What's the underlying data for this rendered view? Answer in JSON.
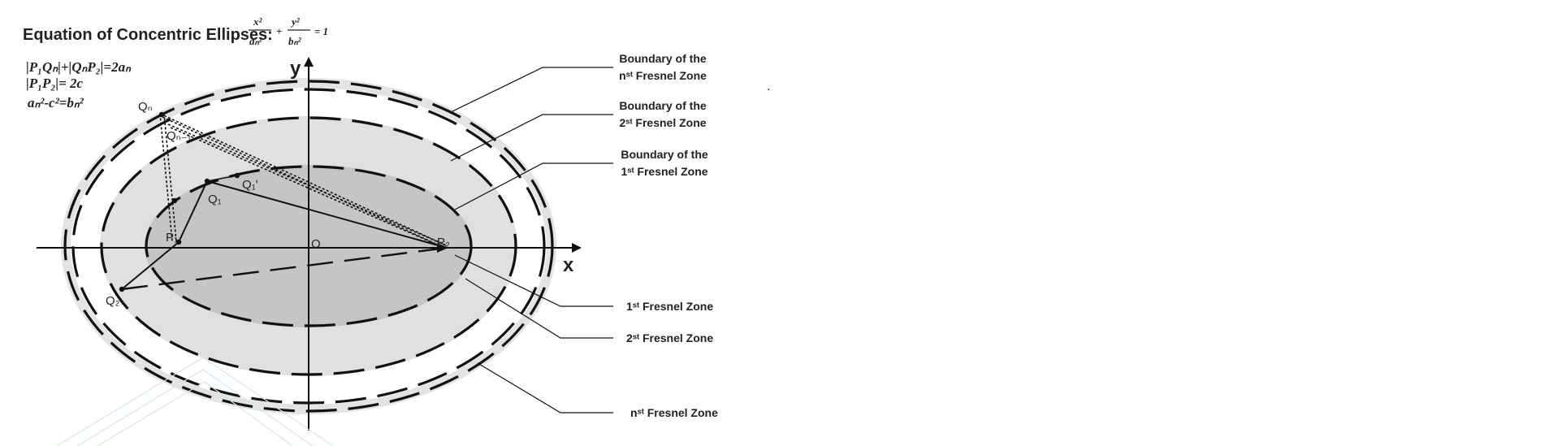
{
  "title": "Equation of Concentric Ellipses:",
  "equation": {
    "x_num": "x²",
    "x_den": "aₙ²",
    "plus": "+",
    "y_num": "y²",
    "y_den": "bₙ²",
    "rhs": "= 1"
  },
  "relations": [
    "|P₁Qₙ|+|QₙP₂|=2aₙ",
    "|P₁P₂|= 2c",
    "aₙ²-c²=bₙ²"
  ],
  "axes": {
    "x": "x",
    "y": "y",
    "origin": "O"
  },
  "points": {
    "qn": "Qₙ",
    "qn1": "Qₙ₋₁",
    "q1": "Q₁",
    "q1p": "Q₁'",
    "q2": "Q₂",
    "p1": "P₁",
    "p2": "P₂"
  },
  "callouts": {
    "boundary_n": [
      "Boundary of the",
      "nˢᵗ Fresnel Zone"
    ],
    "boundary_2": [
      "Boundary of the",
      "2ˢᵗ Fresnel Zone"
    ],
    "boundary_1": [
      "Boundary of the",
      "1ˢᵗ Fresnel Zone"
    ],
    "zone_1": "1ˢᵗ Fresnel Zone",
    "zone_2": "2ˢᵗ Fresnel Zone",
    "zone_n": "nˢᵗ Fresnel Zone"
  },
  "stray_dot": "."
}
